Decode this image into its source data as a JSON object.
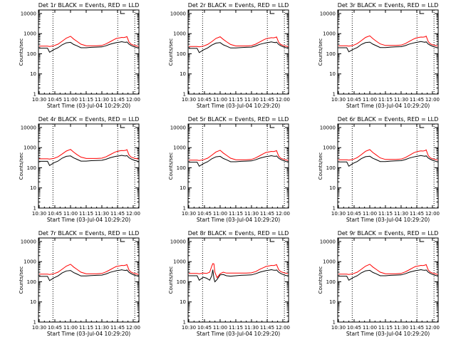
{
  "colors": {
    "events": "#000000",
    "lld": "#ff0000",
    "axis": "#000000",
    "background": "#ffffff"
  },
  "shared": {
    "xlabel": "Start Time (03-Jul-04 10:29:20)",
    "ylabel": "Counts/sec",
    "x_ticks": [
      "10:30",
      "10:45",
      "11:00",
      "11:15",
      "11:30",
      "11:45",
      "12:00"
    ],
    "x_tick_minutes": [
      30,
      45,
      60,
      75,
      90,
      105,
      120
    ],
    "y_ticks": [
      "1",
      "10",
      "100",
      "1000",
      "10000"
    ],
    "y_tick_values": [
      1,
      10,
      100,
      1000,
      10000
    ],
    "xlim_minutes": [
      29.33,
      125.5
    ],
    "ylim": [
      1,
      15000
    ],
    "y_scale": "log",
    "vlines_minutes": [
      43.2,
      105.2,
      121.5
    ],
    "grid": false,
    "legend": "none"
  },
  "chart_data": [
    {
      "type": "line",
      "title": "Det 1r BLACK = Events, RED = LLD",
      "x": [
        30,
        38,
        40,
        44,
        48,
        52,
        56,
        60,
        63,
        66,
        70,
        75,
        80,
        85,
        90,
        94,
        98,
        102,
        104,
        107,
        109,
        111,
        113,
        114,
        116,
        118,
        121,
        124,
        125
      ],
      "series": [
        {
          "values": [
            240,
            240,
            230,
            250,
            300,
            420,
            600,
            740,
            540,
            420,
            300,
            250,
            250,
            250,
            260,
            310,
            400,
            520,
            580,
            620,
            650,
            640,
            680,
            720,
            380,
            300,
            260,
            240,
            230
          ]
        },
        {
          "values": [
            190,
            190,
            120,
            160,
            200,
            280,
            350,
            370,
            290,
            250,
            200,
            200,
            210,
            215,
            220,
            250,
            300,
            340,
            360,
            380,
            400,
            380,
            370,
            390,
            300,
            260,
            220,
            200,
            190
          ]
        }
      ]
    },
    {
      "type": "line",
      "title": "Det 2r BLACK = Events, RED = LLD",
      "x": [
        30,
        38,
        40,
        44,
        48,
        52,
        56,
        60,
        63,
        66,
        70,
        75,
        80,
        85,
        90,
        94,
        98,
        102,
        104,
        107,
        109,
        111,
        113,
        114,
        116,
        118,
        121,
        124,
        125
      ],
      "series": [
        {
          "values": [
            230,
            230,
            220,
            240,
            290,
            400,
            580,
            700,
            520,
            400,
            290,
            245,
            245,
            245,
            255,
            300,
            390,
            500,
            560,
            600,
            630,
            620,
            650,
            690,
            370,
            290,
            250,
            235,
            225
          ]
        },
        {
          "values": [
            185,
            185,
            115,
            155,
            195,
            270,
            340,
            360,
            280,
            240,
            195,
            195,
            205,
            210,
            215,
            245,
            295,
            330,
            350,
            370,
            390,
            370,
            360,
            380,
            290,
            250,
            215,
            195,
            185
          ]
        }
      ]
    },
    {
      "type": "line",
      "title": "Det 3r BLACK = Events, RED = LLD",
      "x": [
        30,
        38,
        40,
        44,
        48,
        52,
        56,
        60,
        63,
        66,
        70,
        75,
        80,
        85,
        90,
        94,
        98,
        102,
        104,
        107,
        109,
        111,
        113,
        114,
        116,
        118,
        121,
        124,
        125
      ],
      "series": [
        {
          "values": [
            250,
            250,
            240,
            260,
            320,
            450,
            650,
            780,
            560,
            430,
            310,
            260,
            260,
            260,
            270,
            320,
            420,
            540,
            600,
            650,
            680,
            670,
            700,
            760,
            400,
            310,
            270,
            250,
            240
          ]
        },
        {
          "values": [
            200,
            200,
            125,
            165,
            205,
            290,
            360,
            380,
            300,
            255,
            205,
            205,
            215,
            220,
            225,
            255,
            305,
            345,
            365,
            385,
            405,
            385,
            375,
            395,
            305,
            265,
            225,
            205,
            195
          ]
        }
      ]
    },
    {
      "type": "line",
      "title": "Det 4r BLACK = Events, RED = LLD",
      "x": [
        30,
        38,
        40,
        44,
        48,
        52,
        56,
        60,
        63,
        66,
        70,
        75,
        80,
        85,
        90,
        94,
        98,
        102,
        104,
        107,
        109,
        111,
        113,
        114,
        116,
        118,
        121,
        124,
        125
      ],
      "series": [
        {
          "values": [
            280,
            280,
            270,
            290,
            350,
            480,
            680,
            820,
            600,
            460,
            340,
            290,
            290,
            290,
            300,
            350,
            450,
            580,
            640,
            690,
            720,
            710,
            740,
            800,
            430,
            340,
            300,
            280,
            270
          ]
        },
        {
          "values": [
            210,
            210,
            130,
            175,
            215,
            300,
            370,
            390,
            310,
            265,
            215,
            215,
            225,
            230,
            235,
            265,
            315,
            355,
            375,
            395,
            415,
            395,
            385,
            405,
            315,
            275,
            235,
            215,
            205
          ]
        }
      ]
    },
    {
      "type": "line",
      "title": "Det 5r BLACK = Events, RED = LLD",
      "x": [
        30,
        38,
        40,
        44,
        48,
        52,
        56,
        60,
        63,
        66,
        70,
        75,
        80,
        85,
        90,
        94,
        98,
        102,
        104,
        107,
        109,
        111,
        113,
        114,
        116,
        118,
        121,
        124,
        125
      ],
      "series": [
        {
          "values": [
            240,
            240,
            230,
            250,
            300,
            420,
            610,
            740,
            540,
            420,
            300,
            250,
            250,
            250,
            260,
            310,
            400,
            520,
            580,
            620,
            650,
            640,
            680,
            720,
            380,
            300,
            260,
            240,
            230
          ]
        },
        {
          "values": [
            190,
            190,
            120,
            160,
            200,
            280,
            350,
            370,
            290,
            250,
            200,
            200,
            210,
            215,
            220,
            250,
            300,
            340,
            360,
            380,
            400,
            380,
            370,
            390,
            300,
            260,
            220,
            200,
            190
          ]
        }
      ]
    },
    {
      "type": "line",
      "title": "Det 6r BLACK = Events, RED = LLD",
      "x": [
        30,
        38,
        40,
        44,
        48,
        52,
        56,
        60,
        63,
        66,
        70,
        75,
        80,
        85,
        90,
        94,
        98,
        102,
        104,
        107,
        109,
        111,
        113,
        114,
        116,
        118,
        121,
        124,
        125
      ],
      "series": [
        {
          "values": [
            250,
            250,
            240,
            260,
            320,
            450,
            660,
            800,
            570,
            440,
            310,
            260,
            260,
            260,
            270,
            320,
            420,
            550,
            610,
            660,
            690,
            680,
            720,
            780,
            400,
            310,
            270,
            250,
            240
          ]
        },
        {
          "values": [
            195,
            195,
            120,
            165,
            205,
            285,
            355,
            375,
            295,
            255,
            205,
            205,
            215,
            220,
            225,
            255,
            305,
            345,
            365,
            385,
            405,
            385,
            375,
            395,
            305,
            265,
            225,
            205,
            195
          ]
        }
      ]
    },
    {
      "type": "line",
      "title": "Det 7r BLACK = Events, RED = LLD",
      "x": [
        30,
        38,
        40,
        44,
        48,
        52,
        56,
        60,
        63,
        66,
        70,
        75,
        80,
        85,
        90,
        94,
        98,
        102,
        104,
        107,
        109,
        111,
        113,
        114,
        116,
        118,
        121,
        124,
        125
      ],
      "series": [
        {
          "values": [
            240,
            240,
            230,
            250,
            300,
            420,
            600,
            740,
            540,
            420,
            300,
            250,
            250,
            250,
            260,
            310,
            400,
            520,
            580,
            620,
            650,
            640,
            680,
            720,
            380,
            300,
            260,
            240,
            230
          ]
        },
        {
          "values": [
            185,
            185,
            115,
            155,
            195,
            275,
            345,
            365,
            285,
            245,
            195,
            195,
            205,
            210,
            215,
            245,
            295,
            335,
            355,
            375,
            395,
            375,
            365,
            385,
            295,
            255,
            215,
            195,
            185
          ]
        }
      ]
    },
    {
      "type": "line",
      "title": "Det 8r BLACK = Events, RED = LLD",
      "x": [
        30,
        38,
        40,
        44,
        47,
        50,
        52,
        53,
        54,
        55,
        57,
        60,
        63,
        66,
        70,
        75,
        80,
        85,
        90,
        94,
        98,
        102,
        104,
        107,
        109,
        111,
        113,
        114,
        116,
        118,
        121,
        124,
        125
      ],
      "series": [
        {
          "values": [
            260,
            260,
            250,
            270,
            260,
            300,
            600,
            800,
            780,
            300,
            160,
            250,
            300,
            270,
            270,
            270,
            270,
            270,
            280,
            320,
            420,
            520,
            580,
            620,
            650,
            640,
            680,
            720,
            400,
            320,
            280,
            260,
            250
          ]
        },
        {
          "values": [
            200,
            200,
            120,
            170,
            150,
            120,
            200,
            400,
            150,
            100,
            130,
            220,
            230,
            200,
            190,
            200,
            210,
            215,
            220,
            250,
            300,
            340,
            360,
            380,
            400,
            380,
            370,
            390,
            300,
            260,
            220,
            200,
            190
          ]
        }
      ]
    },
    {
      "type": "line",
      "title": "Det 9r BLACK = Events, RED = LLD",
      "x": [
        30,
        38,
        40,
        44,
        48,
        52,
        56,
        60,
        63,
        66,
        70,
        75,
        80,
        85,
        90,
        94,
        98,
        102,
        104,
        107,
        109,
        111,
        113,
        114,
        116,
        118,
        121,
        124,
        125
      ],
      "series": [
        {
          "values": [
            240,
            240,
            230,
            250,
            300,
            420,
            600,
            740,
            540,
            420,
            300,
            250,
            250,
            250,
            260,
            310,
            400,
            520,
            580,
            620,
            650,
            640,
            680,
            720,
            380,
            300,
            260,
            240,
            230
          ]
        },
        {
          "values": [
            190,
            190,
            120,
            160,
            200,
            280,
            350,
            370,
            290,
            250,
            200,
            200,
            210,
            215,
            220,
            250,
            300,
            340,
            360,
            380,
            400,
            380,
            370,
            390,
            300,
            260,
            220,
            200,
            190
          ]
        }
      ]
    }
  ]
}
